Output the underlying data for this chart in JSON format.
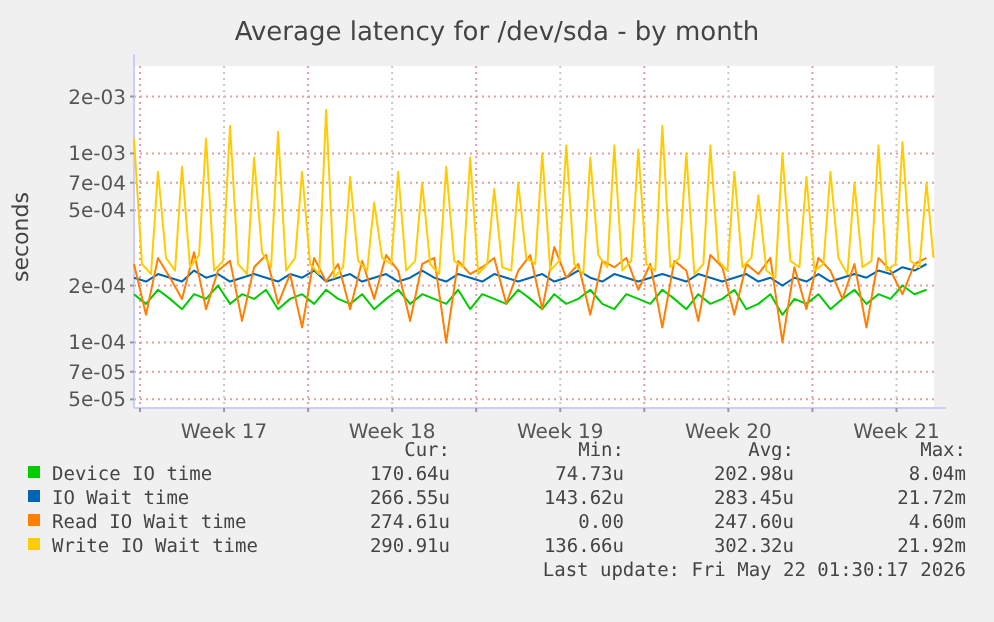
{
  "chart_data": {
    "type": "line",
    "title": "Average latency for /dev/sda - by month",
    "ylabel": "seconds",
    "log": true,
    "grid": true,
    "legend": "bottom",
    "marker": "none",
    "line_style": "solid",
    "xlim": [
      "2026-04-18T18:00",
      "2026-05-22T01:30"
    ],
    "xticks": [
      {
        "value": "2026-04-19",
        "label": null
      },
      {
        "value": "2026-04-22T12:00",
        "label": "Week 17"
      },
      {
        "value": "2026-04-26",
        "label": null
      },
      {
        "value": "2026-04-29T12:00",
        "label": "Week 18"
      },
      {
        "value": "2026-05-03",
        "label": null
      },
      {
        "value": "2026-05-06T12:00",
        "label": "Week 19"
      },
      {
        "value": "2026-05-10",
        "label": null
      },
      {
        "value": "2026-05-13T12:00",
        "label": "Week 20"
      },
      {
        "value": "2026-05-17",
        "label": null
      },
      {
        "value": "2026-05-20T12:00",
        "label": "Week 21"
      }
    ],
    "ylim": [
      4.5e-05,
      0.0029
    ],
    "yticks": [
      {
        "value": 5e-05,
        "label": "5e-05"
      },
      {
        "value": 7e-05,
        "label": "7e-05"
      },
      {
        "value": 0.0001,
        "label": "1e-04"
      },
      {
        "value": 0.0002,
        "label": "2e-04"
      },
      {
        "value": 0.0005,
        "label": "5e-04"
      },
      {
        "value": 0.0007,
        "label": "7e-04"
      },
      {
        "value": 0.001,
        "label": "1e-03"
      },
      {
        "value": 0.002,
        "label": "2e-03"
      }
    ],
    "x": [
      "2026-04-18T18:00",
      "2026-04-19T06:00",
      "2026-04-19T18:00",
      "2026-04-20T06:00",
      "2026-04-20T18:00",
      "2026-04-21T06:00",
      "2026-04-21T18:00",
      "2026-04-22T06:00",
      "2026-04-22T18:00",
      "2026-04-23T06:00",
      "2026-04-23T18:00",
      "2026-04-24T06:00",
      "2026-04-24T18:00",
      "2026-04-25T06:00",
      "2026-04-25T18:00",
      "2026-04-26T06:00",
      "2026-04-26T18:00",
      "2026-04-27T06:00",
      "2026-04-27T18:00",
      "2026-04-28T06:00",
      "2026-04-28T18:00",
      "2026-04-29T06:00",
      "2026-04-29T18:00",
      "2026-04-30T06:00",
      "2026-04-30T18:00",
      "2026-05-01T06:00",
      "2026-05-01T18:00",
      "2026-05-02T06:00",
      "2026-05-02T18:00",
      "2026-05-03T06:00",
      "2026-05-03T18:00",
      "2026-05-04T06:00",
      "2026-05-04T18:00",
      "2026-05-05T06:00",
      "2026-05-05T18:00",
      "2026-05-06T06:00",
      "2026-05-06T18:00",
      "2026-05-07T06:00",
      "2026-05-07T18:00",
      "2026-05-08T06:00",
      "2026-05-08T18:00",
      "2026-05-09T06:00",
      "2026-05-09T18:00",
      "2026-05-10T06:00",
      "2026-05-10T18:00",
      "2026-05-11T06:00",
      "2026-05-11T18:00",
      "2026-05-12T06:00",
      "2026-05-12T18:00",
      "2026-05-13T06:00",
      "2026-05-13T18:00",
      "2026-05-14T06:00",
      "2026-05-14T18:00",
      "2026-05-15T06:00",
      "2026-05-15T18:00",
      "2026-05-16T06:00",
      "2026-05-16T18:00",
      "2026-05-17T06:00",
      "2026-05-17T18:00",
      "2026-05-18T06:00",
      "2026-05-18T18:00",
      "2026-05-19T06:00",
      "2026-05-19T18:00",
      "2026-05-20T06:00",
      "2026-05-20T18:00",
      "2026-05-21T06:00",
      "2026-05-21T18:00"
    ],
    "series": [
      {
        "name": "Device IO time",
        "color": "#00cc00",
        "values": [
          0.00018,
          0.00016,
          0.00019,
          0.00017,
          0.00015,
          0.00018,
          0.00017,
          0.0002,
          0.00016,
          0.00018,
          0.00017,
          0.00019,
          0.00015,
          0.00017,
          0.00018,
          0.00016,
          0.00019,
          0.00017,
          0.00016,
          0.00018,
          0.00015,
          0.00017,
          0.00019,
          0.00016,
          0.00018,
          0.00017,
          0.00016,
          0.00019,
          0.00015,
          0.00018,
          0.00017,
          0.00016,
          0.00019,
          0.00017,
          0.00015,
          0.00018,
          0.00016,
          0.00017,
          0.00019,
          0.00016,
          0.00015,
          0.00018,
          0.00017,
          0.00016,
          0.00019,
          0.00017,
          0.00015,
          0.00018,
          0.00016,
          0.00017,
          0.00019,
          0.00015,
          0.00016,
          0.00018,
          0.00014,
          0.00017,
          0.00016,
          0.00018,
          0.00015,
          0.00017,
          0.00019,
          0.00016,
          0.00018,
          0.00017,
          0.0002,
          0.00018,
          0.00019
        ]
      },
      {
        "name": "IO Wait time",
        "color": "#0066b3",
        "values": [
          0.00022,
          0.00021,
          0.00023,
          0.00022,
          0.00021,
          0.00024,
          0.00022,
          0.00023,
          0.00021,
          0.00022,
          0.00023,
          0.00022,
          0.00021,
          0.00023,
          0.00022,
          0.00024,
          0.00021,
          0.00022,
          0.00023,
          0.00021,
          0.00022,
          0.00023,
          0.00021,
          0.00022,
          0.00024,
          0.00022,
          0.00021,
          0.00023,
          0.00022,
          0.00021,
          0.00023,
          0.00022,
          0.00021,
          0.00022,
          0.00023,
          0.00021,
          0.00022,
          0.00024,
          0.00022,
          0.00021,
          0.00023,
          0.00022,
          0.00021,
          0.00022,
          0.00023,
          0.00022,
          0.00021,
          0.00023,
          0.00022,
          0.00021,
          0.00022,
          0.00023,
          0.00021,
          0.00022,
          0.0002,
          0.00022,
          0.00021,
          0.00023,
          0.00021,
          0.00022,
          0.00023,
          0.00022,
          0.00024,
          0.00023,
          0.00025,
          0.00024,
          0.00026
        ]
      },
      {
        "name": "Read IO Wait time",
        "color": "#ff8000",
        "values": [
          0.00026,
          0.00014,
          0.00028,
          0.00022,
          0.00017,
          0.0003,
          0.00015,
          0.00024,
          0.00027,
          0.00013,
          0.00025,
          0.00029,
          0.00016,
          0.00023,
          0.00012,
          0.00028,
          0.00021,
          0.00026,
          0.00015,
          0.00027,
          0.00017,
          0.00029,
          0.00024,
          0.00013,
          0.00026,
          0.00028,
          0.0001,
          0.00027,
          0.00023,
          0.00025,
          0.00028,
          0.00016,
          0.00024,
          0.00029,
          0.00015,
          0.00032,
          0.00022,
          0.00026,
          0.00014,
          0.00027,
          0.00025,
          0.00028,
          0.00019,
          0.00026,
          0.00012,
          0.00027,
          0.00024,
          0.00013,
          0.00029,
          0.00025,
          0.00014,
          0.00026,
          0.00023,
          0.00028,
          0.0001,
          0.00025,
          0.00015,
          0.00028,
          0.00024,
          0.00017,
          0.00026,
          0.00012,
          0.00028,
          0.00024,
          0.00018,
          0.00026,
          0.00028
        ]
      },
      {
        "name": "Write IO Wait time",
        "color": "#ffcc00",
        "x": [
          "2026-04-18T18:00",
          "2026-04-19T02:00",
          "2026-04-19T11:00",
          "2026-04-19T18:00",
          "2026-04-20T02:00",
          "2026-04-20T11:00",
          "2026-04-20T18:00",
          "2026-04-21T02:00",
          "2026-04-21T11:00",
          "2026-04-21T18:00",
          "2026-04-22T02:00",
          "2026-04-22T11:00",
          "2026-04-22T18:00",
          "2026-04-23T02:00",
          "2026-04-23T11:00",
          "2026-04-23T18:00",
          "2026-04-24T02:00",
          "2026-04-24T11:00",
          "2026-04-24T18:00",
          "2026-04-25T02:00",
          "2026-04-25T11:00",
          "2026-04-25T18:00",
          "2026-04-26T02:00",
          "2026-04-26T11:00",
          "2026-04-26T18:00",
          "2026-04-27T02:00",
          "2026-04-27T11:00",
          "2026-04-27T18:00",
          "2026-04-28T02:00",
          "2026-04-28T11:00",
          "2026-04-28T18:00",
          "2026-04-29T02:00",
          "2026-04-29T11:00",
          "2026-04-29T18:00",
          "2026-04-30T02:00",
          "2026-04-30T11:00",
          "2026-04-30T18:00",
          "2026-05-01T02:00",
          "2026-05-01T11:00",
          "2026-05-01T18:00",
          "2026-05-02T02:00",
          "2026-05-02T11:00",
          "2026-05-02T18:00",
          "2026-05-03T02:00",
          "2026-05-03T11:00",
          "2026-05-03T18:00",
          "2026-05-04T02:00",
          "2026-05-04T11:00",
          "2026-05-04T18:00",
          "2026-05-05T02:00",
          "2026-05-05T11:00",
          "2026-05-05T18:00",
          "2026-05-06T02:00",
          "2026-05-06T11:00",
          "2026-05-06T18:00",
          "2026-05-07T02:00",
          "2026-05-07T11:00",
          "2026-05-07T18:00",
          "2026-05-08T02:00",
          "2026-05-08T11:00",
          "2026-05-08T18:00",
          "2026-05-09T02:00",
          "2026-05-09T11:00",
          "2026-05-09T18:00",
          "2026-05-10T02:00",
          "2026-05-10T11:00",
          "2026-05-10T18:00",
          "2026-05-11T02:00",
          "2026-05-11T11:00",
          "2026-05-11T18:00",
          "2026-05-12T02:00",
          "2026-05-12T11:00",
          "2026-05-12T18:00",
          "2026-05-13T02:00",
          "2026-05-13T11:00",
          "2026-05-13T18:00",
          "2026-05-14T02:00",
          "2026-05-14T11:00",
          "2026-05-14T18:00",
          "2026-05-15T02:00",
          "2026-05-15T11:00",
          "2026-05-15T18:00",
          "2026-05-16T02:00",
          "2026-05-16T11:00",
          "2026-05-16T18:00",
          "2026-05-17T02:00",
          "2026-05-17T11:00",
          "2026-05-17T18:00",
          "2026-05-18T02:00",
          "2026-05-18T11:00",
          "2026-05-18T18:00",
          "2026-05-19T02:00",
          "2026-05-19T11:00",
          "2026-05-19T18:00",
          "2026-05-20T02:00",
          "2026-05-20T11:00",
          "2026-05-20T18:00",
          "2026-05-21T02:00",
          "2026-05-21T11:00",
          "2026-05-21T18:00",
          "2026-05-22T01:00"
        ],
        "values": [
          0.0012,
          0.00026,
          0.00023,
          0.0008,
          0.00028,
          0.00024,
          0.00085,
          0.00025,
          0.00029,
          0.0012,
          0.00024,
          0.00027,
          0.0014,
          0.00026,
          0.00023,
          0.00095,
          0.0003,
          0.00025,
          0.0013,
          0.00024,
          0.00028,
          0.0008,
          0.00026,
          0.00023,
          0.0017,
          0.00022,
          0.00025,
          0.00075,
          0.00027,
          0.00024,
          0.00055,
          0.00028,
          0.00026,
          0.0008,
          0.00024,
          0.00027,
          0.0007,
          0.00026,
          0.00023,
          0.00085,
          0.00027,
          0.00025,
          0.00095,
          0.00023,
          0.00026,
          0.00065,
          0.00025,
          0.00024,
          0.0007,
          0.00028,
          0.00026,
          0.001,
          0.00024,
          0.00027,
          0.0011,
          0.00026,
          0.00023,
          0.00095,
          0.00029,
          0.00025,
          0.0011,
          0.00024,
          0.00027,
          0.00105,
          0.00026,
          0.00024,
          0.0014,
          0.00025,
          0.00028,
          0.001,
          0.00023,
          0.00026,
          0.0011,
          0.00027,
          0.00024,
          0.0008,
          0.00025,
          0.00028,
          0.0006,
          0.00024,
          0.00022,
          0.001,
          0.00027,
          0.00025,
          0.00075,
          0.00024,
          0.00026,
          0.0008,
          0.00028,
          0.00023,
          0.0007,
          0.00025,
          0.00027,
          0.0011,
          0.00024,
          0.00026,
          0.00115,
          0.00027,
          0.00025,
          0.0007,
          0.00028
        ]
      }
    ],
    "annotations": [
      "Cur:",
      "Min:",
      "Avg:",
      "Max:",
      "170.64u",
      "74.73u",
      "202.98u",
      "8.04m",
      "266.55u",
      "143.62u",
      "283.45u",
      "21.72m",
      "274.61u",
      "0.00",
      "247.60u",
      "4.60m",
      "290.91u",
      "136.66u",
      "302.32u",
      "21.92m",
      "Last update: Fri May 22 01:30:17 2026"
    ]
  }
}
